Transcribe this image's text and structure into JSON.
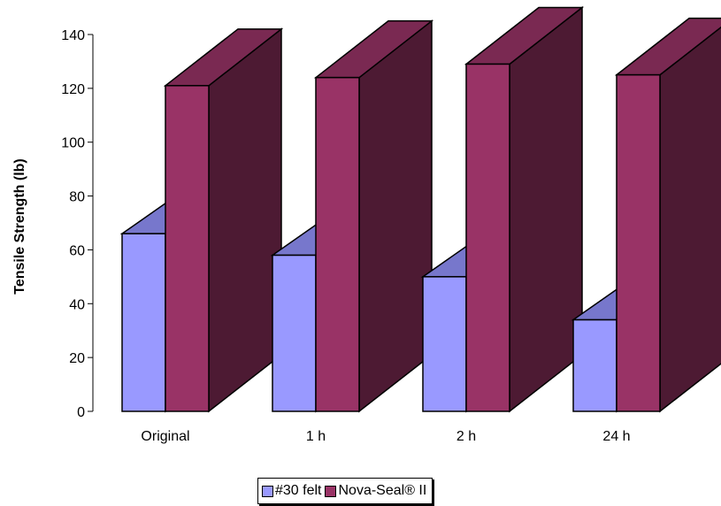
{
  "chart_data": {
    "type": "bar",
    "style": "3d-clustered",
    "categories": [
      "Original",
      "1 h",
      "2 h",
      "24 h"
    ],
    "series": [
      {
        "name": "#30 felt",
        "values": [
          66,
          58,
          50,
          34
        ],
        "color": "#9999FF",
        "top_color": "#7777CC",
        "side_color": "#6666AA"
      },
      {
        "name": "Nova-Seal® II",
        "values": [
          121,
          124,
          129,
          125
        ],
        "color": "#993366",
        "top_color": "#7A2952",
        "side_color": "#4D1A33"
      }
    ],
    "title": "",
    "xlabel": "",
    "ylabel": "Tensile Strength (lb)",
    "ylim": [
      0,
      140
    ],
    "yticks": [
      0,
      20,
      40,
      60,
      80,
      100,
      120,
      140
    ],
    "grid": false,
    "legend_position": "bottom"
  }
}
